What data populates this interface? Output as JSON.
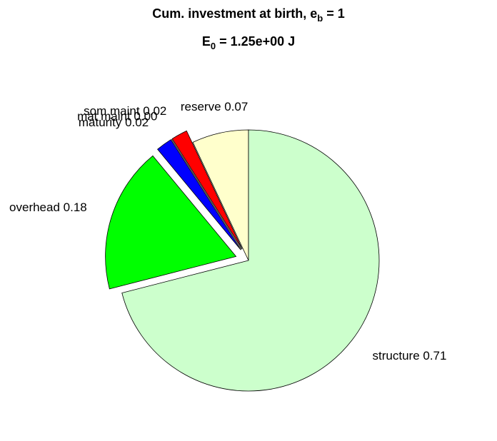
{
  "chart_data": {
    "type": "pie",
    "title": [
      [
        {
          "text": "Cum. investment at birth, e"
        },
        {
          "text": "b",
          "sub": true
        },
        {
          "text": " = 1"
        }
      ],
      [
        {
          "text": "E"
        },
        {
          "text": "0",
          "sub": true
        },
        {
          "text": " = 1.25e+00 J"
        }
      ]
    ],
    "categories": [
      "reserve 0.07",
      "som maint 0.02",
      "mat maint 0.00",
      "maturity 0.02",
      "overhead 0.18",
      "structure 0.71"
    ],
    "values": [
      0.07,
      0.02,
      0.0,
      0.02,
      0.18,
      0.71
    ],
    "colors": [
      "#ffffcc",
      "#ff0000",
      "#000080",
      "#0000ff",
      "#00ff00",
      "#ccffcc"
    ],
    "explode": [
      false,
      true,
      true,
      true,
      true,
      false
    ]
  }
}
